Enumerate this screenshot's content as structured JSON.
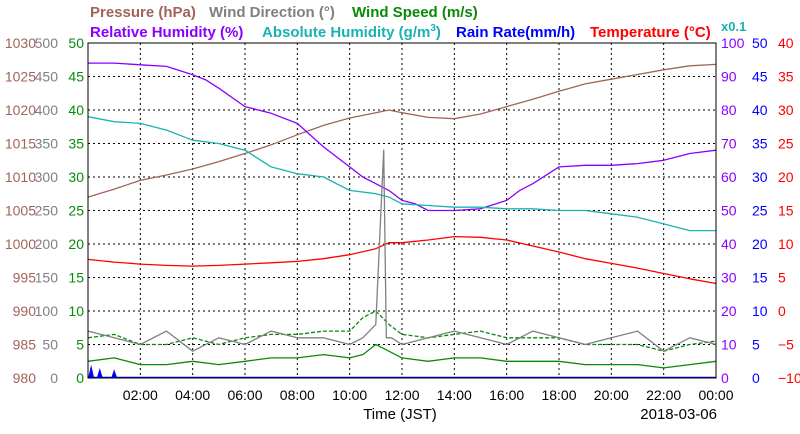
{
  "chart_data": {
    "type": "line",
    "date_label": "2018-03-06",
    "xlabel": "Time (JST)",
    "x_ticks": [
      "02:00",
      "04:00",
      "06:00",
      "08:00",
      "10:00",
      "12:00",
      "14:00",
      "16:00",
      "18:00",
      "20:00",
      "22:00",
      "00:00"
    ],
    "legend": {
      "pressure": "Pressure (hPa)",
      "wind_dir": "Wind Direction (°)",
      "wind_speed": "Wind Speed (m/s)",
      "rel_hum": "Relative Humidity (%)",
      "abs_hum_main": "Absolute Humidity (g/m",
      "abs_hum_sup": "3",
      "abs_hum_end": ")",
      "rain": "Rain Rate(mm/h)",
      "temp": "Temperature (°C)",
      "scale_note": "x0.1"
    },
    "colors": {
      "pressure": "#a0645a",
      "wind_dir": "#808080",
      "wind_speed": "#0a8a0a",
      "rel_hum": "#8a00ff",
      "abs_hum": "#1ab2b2",
      "rain": "#0000ff",
      "temp": "#ff0000"
    },
    "axes": {
      "pressure": {
        "range": [
          980,
          1030
        ],
        "ticks": [
          "1030",
          "1025",
          "1020",
          "1015",
          "1010",
          "1005",
          "1000",
          "995",
          "990",
          "985",
          "980"
        ]
      },
      "wind_dir": {
        "range": [
          0,
          500
        ],
        "ticks": [
          "500",
          "450",
          "400",
          "350",
          "300",
          "250",
          "200",
          "150",
          "100",
          "50",
          "0"
        ]
      },
      "wind_speed": {
        "range": [
          0,
          50
        ],
        "ticks": [
          "50",
          "45",
          "40",
          "35",
          "30",
          "25",
          "20",
          "15",
          "10",
          "5",
          "0"
        ]
      },
      "rel_hum": {
        "range": [
          0,
          100
        ],
        "ticks": [
          "100",
          "90",
          "80",
          "70",
          "60",
          "50",
          "40",
          "30",
          "20",
          "10",
          "0"
        ]
      },
      "rain": {
        "range": [
          0,
          50
        ],
        "ticks": [
          "50",
          "45",
          "40",
          "35",
          "30",
          "25",
          "20",
          "15",
          "10",
          "5",
          "0"
        ]
      },
      "temp": {
        "range": [
          -10,
          40
        ],
        "ticks": [
          "40",
          "35",
          "30",
          "25",
          "20",
          "15",
          "10",
          "5",
          "0",
          "−5",
          "−10"
        ]
      }
    },
    "series": [
      {
        "name": "Pressure (hPa)",
        "key": "pressure",
        "axis": "pressure",
        "x": [
          0,
          1,
          2,
          3,
          4,
          5,
          6,
          7,
          8,
          9,
          10,
          11,
          11.5,
          12,
          13,
          14,
          15,
          16,
          17,
          18,
          19,
          20,
          21,
          22,
          23,
          24
        ],
        "y": [
          1007,
          1008.2,
          1009.5,
          1010.3,
          1011.2,
          1012.3,
          1013.5,
          1014.8,
          1016.3,
          1017.7,
          1018.8,
          1019.6,
          1020,
          1019.6,
          1018.9,
          1018.7,
          1019.4,
          1020.5,
          1021.6,
          1022.8,
          1023.9,
          1024.6,
          1025.3,
          1026.0,
          1026.6,
          1026.8
        ]
      },
      {
        "name": "Relative Humidity (%)",
        "key": "rel_hum",
        "axis": "rel_hum",
        "x": [
          0,
          1,
          2,
          3,
          4,
          4.5,
          5,
          6,
          7,
          8,
          9,
          10,
          10.5,
          11,
          11.5,
          12,
          12.5,
          13,
          14,
          15,
          16,
          16.5,
          17,
          18,
          19,
          20,
          21,
          22,
          23,
          24
        ],
        "y": [
          94,
          94,
          93.5,
          93,
          90.5,
          89,
          86.5,
          81,
          79,
          76,
          69,
          63,
          60,
          58,
          56,
          53,
          52,
          50,
          50,
          50.5,
          53,
          56,
          58,
          63,
          63.5,
          63.5,
          64,
          65,
          67,
          68
        ]
      },
      {
        "name": "Absolute Humidity",
        "key": "abs_hum",
        "axis": "rel_hum",
        "x": [
          0,
          1,
          2,
          3,
          4,
          5,
          6,
          7,
          8,
          9,
          10,
          11,
          11.5,
          12,
          13,
          14,
          15,
          16,
          17,
          18,
          19,
          20,
          21,
          22,
          23,
          24
        ],
        "y": [
          78,
          76.5,
          76,
          74,
          71,
          70,
          68,
          63,
          61,
          60,
          56,
          55,
          54,
          52,
          51.5,
          51,
          51,
          50.5,
          50.5,
          50,
          50,
          49,
          48,
          46,
          44,
          44
        ]
      },
      {
        "name": "Temperature (°C)",
        "key": "temp",
        "axis": "temp",
        "x": [
          0,
          1,
          2,
          3,
          4,
          5,
          6,
          7,
          8,
          9,
          10,
          11,
          11.5,
          12,
          13,
          14,
          15,
          16,
          17,
          18,
          19,
          20,
          21,
          22,
          23,
          24
        ],
        "y": [
          7.7,
          7.3,
          7.0,
          6.8,
          6.7,
          6.8,
          7.0,
          7.2,
          7.4,
          7.8,
          8.4,
          9.3,
          10.2,
          10.2,
          10.6,
          11.1,
          11.0,
          10.6,
          9.7,
          8.8,
          7.8,
          7.1,
          6.4,
          5.6,
          4.8,
          4.1
        ]
      },
      {
        "name": "Wind Speed (m/s)",
        "key": "wind_speed",
        "axis": "wind_speed",
        "x": [
          0,
          1,
          2,
          3,
          4,
          5,
          6,
          7,
          8,
          9,
          10,
          10.5,
          11,
          11.5,
          12,
          13,
          14,
          15,
          16,
          17,
          18,
          19,
          20,
          21,
          22,
          23,
          24
        ],
        "y": [
          2.5,
          3,
          2,
          2,
          2.5,
          2,
          2.5,
          3,
          3,
          3.5,
          3,
          3.5,
          5,
          4,
          3,
          2.5,
          3,
          3,
          2.5,
          2.5,
          2.5,
          2,
          2,
          2,
          1.5,
          2,
          2.5
        ]
      },
      {
        "name": "Wind Speed gust",
        "key": "wind_speed",
        "axis": "wind_speed",
        "x": [
          0,
          1,
          2,
          3,
          4,
          5,
          6,
          7,
          8,
          9,
          10,
          10.5,
          11,
          11.5,
          12,
          13,
          14,
          15,
          16,
          17,
          18,
          19,
          20,
          21,
          22,
          23,
          24
        ],
        "y": [
          6,
          6.5,
          5,
          5,
          6,
          5,
          6,
          6.5,
          6.5,
          7,
          7,
          9,
          10,
          8,
          6.5,
          6,
          6.5,
          7,
          6,
          6,
          6,
          5,
          5,
          5,
          4,
          5,
          5.5
        ]
      },
      {
        "name": "Wind Direction (°)",
        "key": "wind_dir",
        "axis": "wind_dir",
        "x": [
          0,
          1,
          2,
          3,
          4,
          5,
          6,
          7,
          8,
          9,
          10,
          10.5,
          11,
          11.3,
          11.4,
          11.6,
          12,
          13,
          14,
          15,
          16,
          17,
          18,
          19,
          20,
          21,
          22,
          23,
          24
        ],
        "y": [
          70,
          60,
          50,
          70,
          40,
          60,
          50,
          70,
          60,
          60,
          50,
          60,
          80,
          340,
          60,
          60,
          50,
          60,
          70,
          60,
          50,
          70,
          60,
          50,
          60,
          70,
          40,
          60,
          50
        ]
      }
    ],
    "rain_events": [
      {
        "x": 0.12,
        "y": 2
      },
      {
        "x": 0.45,
        "y": 1.5
      },
      {
        "x": 1.0,
        "y": 1.3
      }
    ]
  }
}
